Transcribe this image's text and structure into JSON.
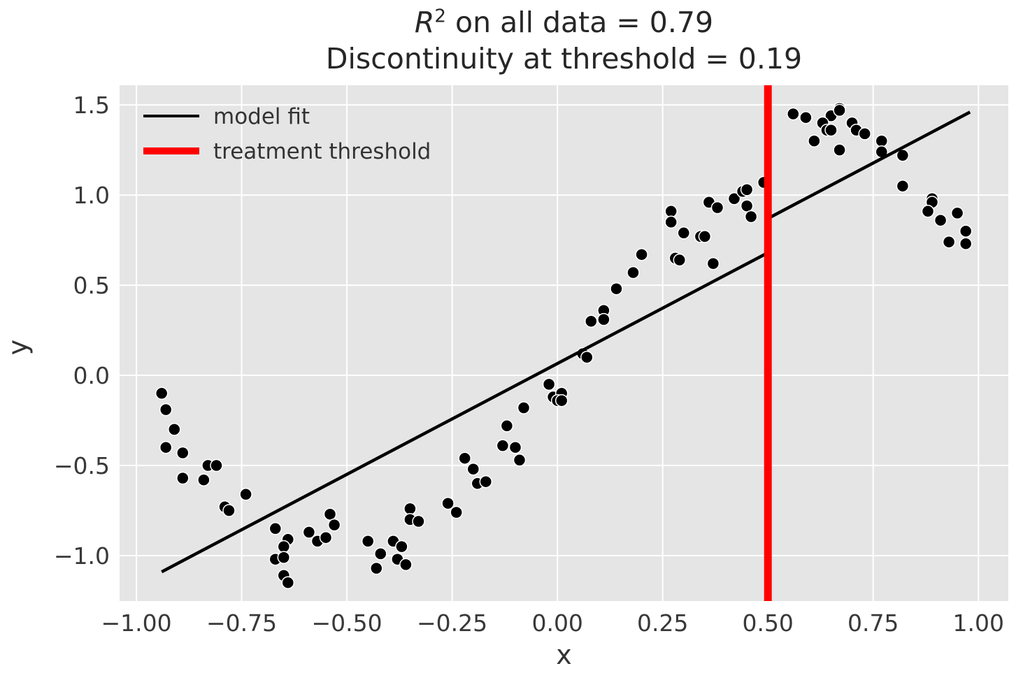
{
  "title": {
    "r": "R",
    "sup": "2",
    "line1_rest": " on all data = 0.79",
    "line2": "Discontinuity at threshold = 0.19"
  },
  "axes": {
    "xlabel": "x",
    "ylabel": "y"
  },
  "legend": {
    "items": [
      {
        "label": "model fit",
        "color": "#000000",
        "thickness": 4
      },
      {
        "label": "treatment threshold",
        "color": "#ff0000",
        "thickness": 10
      }
    ]
  },
  "colors": {
    "plot_bg": "#e5e5e5",
    "grid": "#ffffff",
    "scatter": "#000000",
    "fit_line": "#000000",
    "threshold": "#ff0000",
    "tick_text": "#383838",
    "title_text": "#262626"
  },
  "chart_data": {
    "type": "scatter",
    "title": "R^2 on all data = 0.79\nDiscontinuity at threshold = 0.19",
    "xlabel": "x",
    "ylabel": "y",
    "grid": true,
    "legend_position": "upper left",
    "xlim": [
      -1.04,
      1.071
    ],
    "ylim": [
      -1.252,
      1.609
    ],
    "xticks": [
      -1.0,
      -0.75,
      -0.5,
      -0.25,
      0.0,
      0.25,
      0.5,
      0.75,
      1.0
    ],
    "xtick_labels": [
      "−1.00",
      "−0.75",
      "−0.50",
      "−0.25",
      "0.00",
      "0.25",
      "0.50",
      "0.75",
      "1.00"
    ],
    "yticks": [
      -1.0,
      -0.5,
      0.0,
      0.5,
      1.0,
      1.5
    ],
    "ytick_labels": [
      "−1.0",
      "−0.5",
      "0.0",
      "0.5",
      "1.0",
      "1.5"
    ],
    "threshold_x": 0.5,
    "fit_line": {
      "points": [
        [
          -0.94,
          -1.09
        ],
        [
          0.5,
          0.68
        ],
        [
          0.5,
          0.87
        ],
        [
          0.98,
          1.46
        ]
      ],
      "discontinuity": 0.19
    },
    "scatter": [
      [
        -0.94,
        -0.1
      ],
      [
        -0.93,
        -0.19
      ],
      [
        -0.91,
        -0.3
      ],
      [
        -0.93,
        -0.4
      ],
      [
        -0.89,
        -0.43
      ],
      [
        -0.83,
        -0.5
      ],
      [
        -0.81,
        -0.5
      ],
      [
        -0.89,
        -0.57
      ],
      [
        -0.84,
        -0.58
      ],
      [
        -0.74,
        -0.66
      ],
      [
        -0.79,
        -0.73
      ],
      [
        -0.78,
        -0.75
      ],
      [
        -0.67,
        -0.85
      ],
      [
        -0.64,
        -0.91
      ],
      [
        -0.65,
        -0.95
      ],
      [
        -0.67,
        -1.02
      ],
      [
        -0.65,
        -1.01
      ],
      [
        -0.65,
        -1.11
      ],
      [
        -0.64,
        -1.15
      ],
      [
        -0.59,
        -0.87
      ],
      [
        -0.57,
        -0.92
      ],
      [
        -0.55,
        -0.9
      ],
      [
        -0.54,
        -0.77
      ],
      [
        -0.53,
        -0.83
      ],
      [
        -0.45,
        -0.92
      ],
      [
        -0.42,
        -0.99
      ],
      [
        -0.43,
        -1.07
      ],
      [
        -0.39,
        -0.92
      ],
      [
        -0.37,
        -0.95
      ],
      [
        -0.38,
        -1.02
      ],
      [
        -0.36,
        -1.05
      ],
      [
        -0.35,
        -0.74
      ],
      [
        -0.35,
        -0.8
      ],
      [
        -0.33,
        -0.81
      ],
      [
        -0.26,
        -0.71
      ],
      [
        -0.24,
        -0.76
      ],
      [
        -0.22,
        -0.46
      ],
      [
        -0.2,
        -0.52
      ],
      [
        -0.19,
        -0.6
      ],
      [
        -0.17,
        -0.59
      ],
      [
        -0.13,
        -0.39
      ],
      [
        -0.1,
        -0.4
      ],
      [
        -0.09,
        -0.47
      ],
      [
        -0.12,
        -0.28
      ],
      [
        -0.08,
        -0.18
      ],
      [
        -0.02,
        -0.05
      ],
      [
        -0.01,
        -0.12
      ],
      [
        0.01,
        -0.1
      ],
      [
        0.0,
        -0.14
      ],
      [
        0.01,
        -0.14
      ],
      [
        0.06,
        0.12
      ],
      [
        0.07,
        0.1
      ],
      [
        0.08,
        0.3
      ],
      [
        0.11,
        0.36
      ],
      [
        0.11,
        0.31
      ],
      [
        0.14,
        0.48
      ],
      [
        0.18,
        0.57
      ],
      [
        0.2,
        0.67
      ],
      [
        0.27,
        0.91
      ],
      [
        0.27,
        0.85
      ],
      [
        0.3,
        0.79
      ],
      [
        0.28,
        0.65
      ],
      [
        0.29,
        0.64
      ],
      [
        0.34,
        0.77
      ],
      [
        0.35,
        0.77
      ],
      [
        0.36,
        0.96
      ],
      [
        0.38,
        0.93
      ],
      [
        0.37,
        0.62
      ],
      [
        0.42,
        0.98
      ],
      [
        0.44,
        1.02
      ],
      [
        0.45,
        1.03
      ],
      [
        0.49,
        1.07
      ],
      [
        0.45,
        0.94
      ],
      [
        0.46,
        0.88
      ],
      [
        0.56,
        1.45
      ],
      [
        0.59,
        1.43
      ],
      [
        0.65,
        1.44
      ],
      [
        0.67,
        1.48
      ],
      [
        0.67,
        1.47
      ],
      [
        0.63,
        1.4
      ],
      [
        0.64,
        1.36
      ],
      [
        0.65,
        1.36
      ],
      [
        0.7,
        1.4
      ],
      [
        0.71,
        1.36
      ],
      [
        0.73,
        1.34
      ],
      [
        0.61,
        1.3
      ],
      [
        0.67,
        1.25
      ],
      [
        0.77,
        1.3
      ],
      [
        0.77,
        1.24
      ],
      [
        0.82,
        1.22
      ],
      [
        0.82,
        1.05
      ],
      [
        0.89,
        0.98
      ],
      [
        0.89,
        0.96
      ],
      [
        0.88,
        0.91
      ],
      [
        0.91,
        0.86
      ],
      [
        0.95,
        0.9
      ],
      [
        0.97,
        0.8
      ],
      [
        0.93,
        0.74
      ],
      [
        0.97,
        0.73
      ]
    ]
  }
}
